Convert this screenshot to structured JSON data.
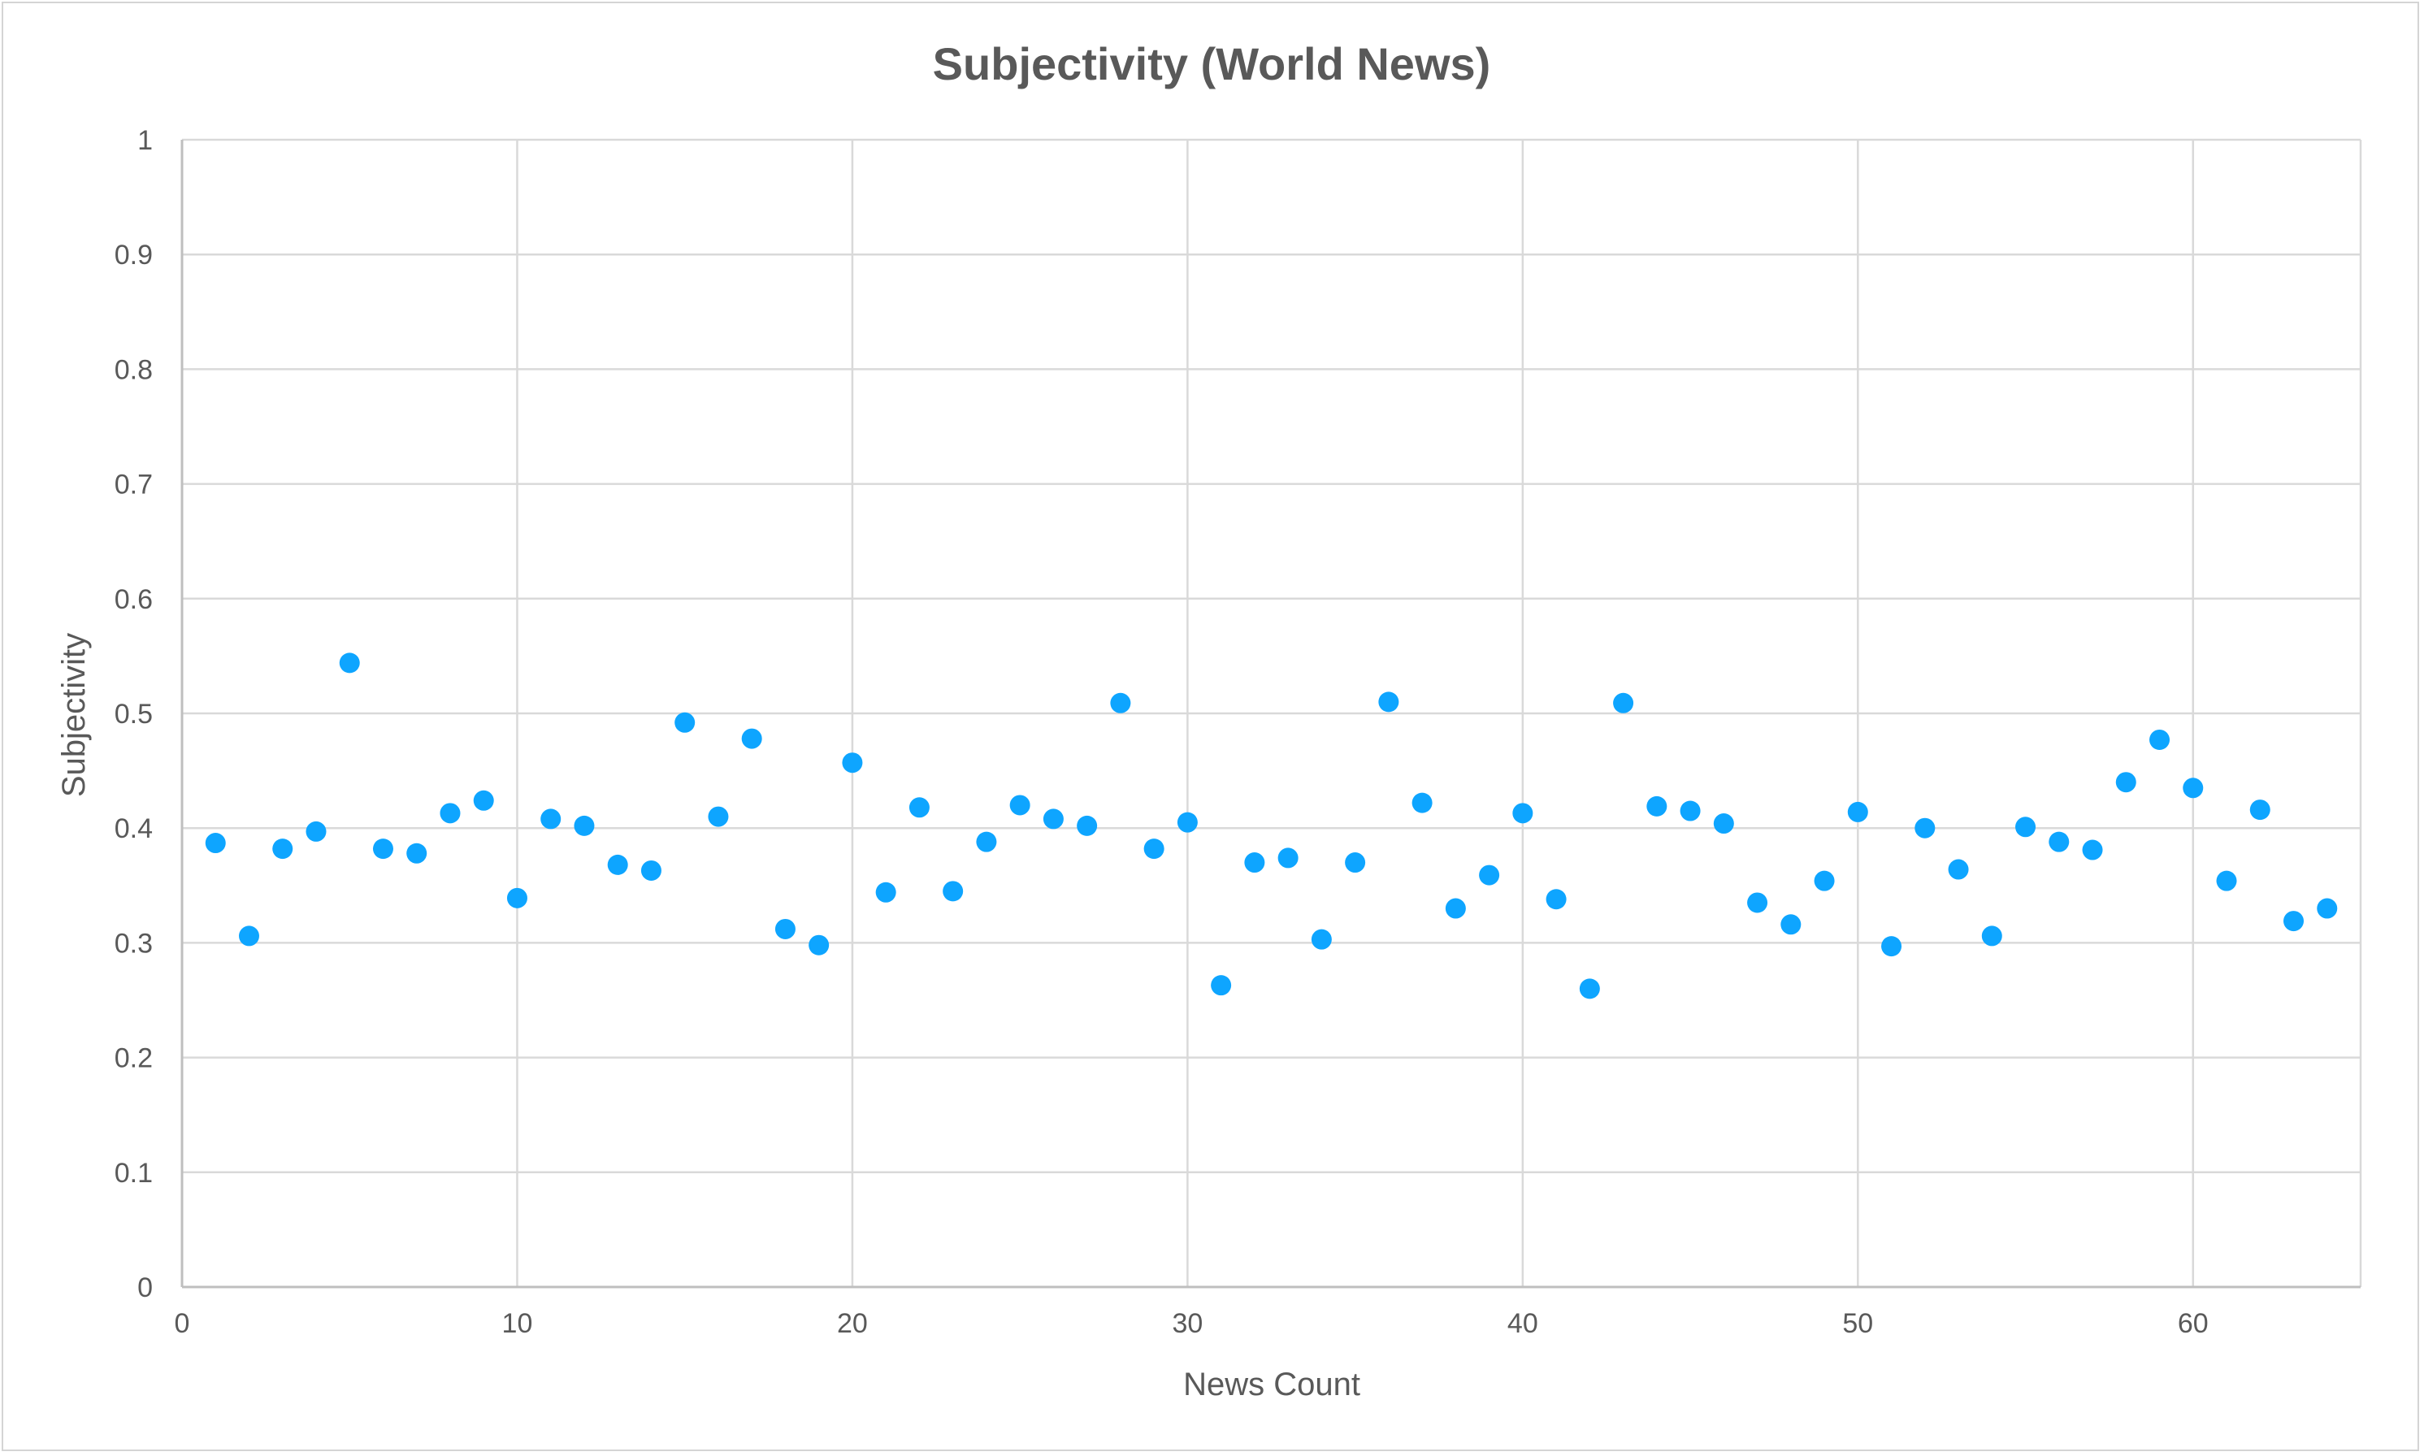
{
  "chart_data": {
    "type": "scatter",
    "title": "Subjectivity (World News)",
    "xlabel": "News Count",
    "ylabel": "Subjectivity",
    "xlim": [
      0,
      65
    ],
    "ylim": [
      0,
      1
    ],
    "x_ticks": [
      0,
      10,
      20,
      30,
      40,
      50,
      60
    ],
    "y_ticks": [
      0,
      0.1,
      0.2,
      0.3,
      0.4,
      0.5,
      0.6,
      0.7,
      0.8,
      0.9,
      1
    ],
    "x_tick_labels": [
      "0",
      "10",
      "20",
      "30",
      "40",
      "50",
      "60"
    ],
    "y_tick_labels": [
      "0",
      "0.1",
      "0.2",
      "0.3",
      "0.4",
      "0.5",
      "0.6",
      "0.7",
      "0.8",
      "0.9",
      "1"
    ],
    "grid": true,
    "legend": "none",
    "marker_color": "#0ea5ff",
    "series": [
      {
        "x": [
          1,
          2,
          3,
          4,
          5,
          6,
          7,
          8,
          9,
          10,
          11,
          12,
          13,
          14,
          15,
          16,
          17,
          18,
          19,
          20,
          21,
          22,
          23,
          24,
          25,
          26,
          27,
          28,
          29,
          30,
          31,
          32,
          33,
          34,
          35,
          36,
          37,
          38,
          39,
          40,
          41,
          42,
          43,
          44,
          45,
          46,
          47,
          48,
          49,
          50,
          51,
          52,
          53,
          54,
          55,
          56,
          57,
          58,
          59,
          60,
          61,
          62,
          63,
          64
        ],
        "y": [
          0.387,
          0.306,
          0.382,
          0.397,
          0.544,
          0.382,
          0.378,
          0.413,
          0.424,
          0.339,
          0.408,
          0.402,
          0.368,
          0.363,
          0.492,
          0.41,
          0.478,
          0.312,
          0.298,
          0.457,
          0.344,
          0.418,
          0.345,
          0.388,
          0.42,
          0.408,
          0.402,
          0.509,
          0.382,
          0.405,
          0.263,
          0.37,
          0.374,
          0.303,
          0.37,
          0.51,
          0.422,
          0.33,
          0.359,
          0.413,
          0.338,
          0.26,
          0.509,
          0.419,
          0.415,
          0.404,
          0.335,
          0.316,
          0.354,
          0.414,
          0.297,
          0.4,
          0.364,
          0.306,
          0.401,
          0.388,
          0.381,
          0.44,
          0.477,
          0.435,
          0.354,
          0.416,
          0.319,
          0.33
        ]
      }
    ]
  },
  "colors": {
    "grid": "#d9d9d9",
    "text": "#595959",
    "marker": "#0ea5ff"
  }
}
